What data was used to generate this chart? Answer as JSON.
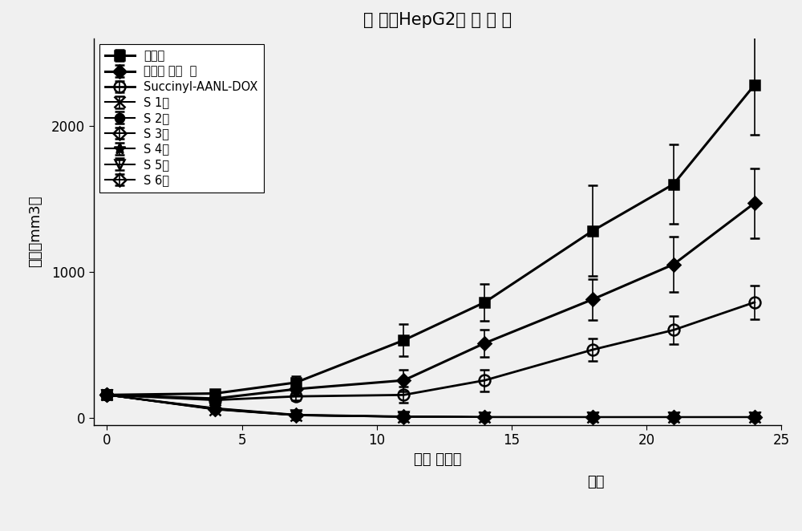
{
  "title": "人 肝癌HepG2肿 瘤 模 型",
  "xlabel": "开始 后天数",
  "xlabel2": "停药",
  "ylabel": "体积（mm3）",
  "xlim": [
    -0.5,
    25
  ],
  "ylim": [
    -50,
    2600
  ],
  "yticks": [
    0,
    1000,
    2000
  ],
  "xticks": [
    0,
    5,
    10,
    15,
    20,
    25
  ],
  "x_points": [
    0,
    4,
    7,
    11,
    14,
    18,
    21,
    24
  ],
  "series": [
    {
      "label": "对照组",
      "marker": "s",
      "fillstyle": "full",
      "color": "#000000",
      "linewidth": 2.2,
      "markersize": 9,
      "y": [
        155,
        165,
        240,
        530,
        790,
        1280,
        1600,
        2280
      ],
      "yerr": [
        15,
        20,
        45,
        110,
        125,
        310,
        270,
        340
      ]
    },
    {
      "label": "阿霞素 治疗 组",
      "marker": "D",
      "fillstyle": "full",
      "color": "#000000",
      "linewidth": 2.2,
      "markersize": 8,
      "y": [
        155,
        130,
        195,
        255,
        510,
        810,
        1050,
        1470
      ],
      "yerr": [
        15,
        25,
        38,
        75,
        95,
        140,
        190,
        240
      ]
    },
    {
      "label": "Succinyl-AANL-DOX",
      "marker": "o",
      "fillstyle": "none",
      "color": "#000000",
      "linewidth": 2.0,
      "markersize": 10,
      "y": [
        155,
        120,
        145,
        155,
        255,
        465,
        600,
        790
      ],
      "yerr": [
        15,
        18,
        28,
        55,
        75,
        75,
        95,
        115
      ]
    },
    {
      "label": "S 1组",
      "marker": "x",
      "fillstyle": "full",
      "color": "#000000",
      "linewidth": 1.5,
      "markersize": 10,
      "y": [
        155,
        55,
        15,
        5,
        3,
        3,
        3,
        3
      ],
      "yerr": [
        15,
        15,
        8,
        3,
        2,
        2,
        2,
        2
      ]
    },
    {
      "label": "S 2组",
      "marker": "o",
      "fillstyle": "full",
      "color": "#000000",
      "linewidth": 1.5,
      "markersize": 8,
      "y": [
        155,
        65,
        20,
        8,
        4,
        3,
        3,
        3
      ],
      "yerr": [
        15,
        15,
        10,
        5,
        3,
        2,
        2,
        2
      ]
    },
    {
      "label": "S 3组",
      "marker": "D",
      "fillstyle": "none",
      "color": "#000000",
      "linewidth": 1.5,
      "markersize": 8,
      "y": [
        155,
        60,
        17,
        6,
        3,
        3,
        3,
        3
      ],
      "yerr": [
        15,
        15,
        9,
        4,
        2,
        2,
        2,
        2
      ]
    },
    {
      "label": "S 4组",
      "marker": "*",
      "fillstyle": "full",
      "color": "#000000",
      "linewidth": 1.5,
      "markersize": 10,
      "y": [
        155,
        58,
        16,
        5,
        3,
        3,
        3,
        3
      ],
      "yerr": [
        15,
        14,
        8,
        3,
        2,
        2,
        2,
        2
      ]
    },
    {
      "label": "S 5组",
      "marker": "v",
      "fillstyle": "none",
      "color": "#000000",
      "linewidth": 1.5,
      "markersize": 9,
      "y": [
        155,
        62,
        18,
        6,
        3,
        3,
        3,
        3
      ],
      "yerr": [
        15,
        15,
        9,
        4,
        2,
        2,
        2,
        2
      ]
    },
    {
      "label": "S 6组",
      "marker": "D",
      "fillstyle": "none",
      "color": "#000000",
      "linewidth": 1.5,
      "markersize": 8,
      "y": [
        155,
        57,
        15,
        5,
        3,
        3,
        3,
        3
      ],
      "yerr": [
        15,
        14,
        8,
        3,
        2,
        2,
        2,
        2
      ]
    }
  ],
  "background_color": "#f0f0f0",
  "plot_bg_color": "#f0f0f0",
  "legend_labels_override": [
    "对照组",
    "阿霞素 治疗  组",
    "Succinyl-AANL-DOX",
    "S 1组",
    "S 2组",
    "S 3组",
    "S 4组",
    "S 5组",
    "S 6组"
  ]
}
